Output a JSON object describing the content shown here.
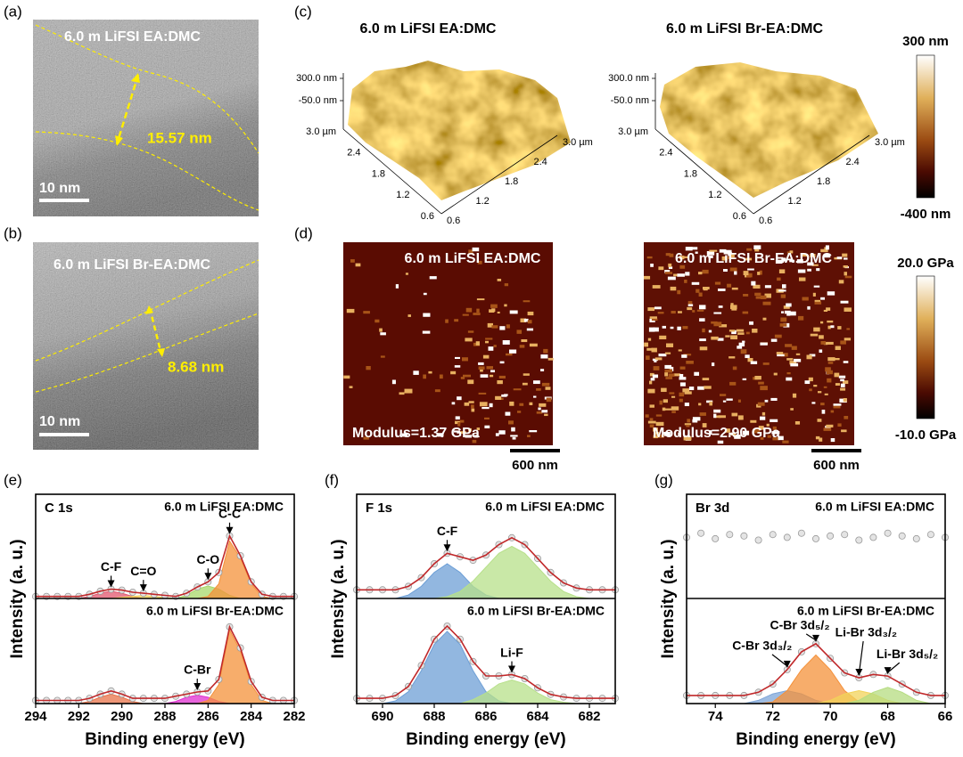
{
  "tem": [
    {
      "label": "(a)",
      "sample": "6.0 m LiFSI EA:DMC",
      "thickness": "15.57 nm",
      "scale_bar": "10 nm"
    },
    {
      "label": "(b)",
      "sample": "6.0 m LiFSI Br-EA:DMC",
      "thickness": "8.68 nm",
      "scale_bar": "10 nm"
    }
  ],
  "afm_height": {
    "label": "(c)",
    "samples": [
      "6.0 m LiFSI EA:DMC",
      "6.0 m LiFSI Br-EA:DMC"
    ],
    "z_ticks": [
      "300.0 nm",
      "-50.0 nm"
    ],
    "lateral_ticks": [
      "3.0 µm",
      "2.4",
      "1.8",
      "1.2",
      "0.6"
    ],
    "colorbar": [
      "300 nm",
      "-400 nm"
    ]
  },
  "afm_modulus": {
    "label": "(d)",
    "samples": [
      "6.0 m LiFSI EA:DMC",
      "6.0 m LiFSI Br-EA:DMC"
    ],
    "moduli": [
      "Modulus=1.37 GPa",
      "Modulus=2.90 GPa"
    ],
    "scale_bar": "600 nm",
    "colorbar": [
      "20.0 GPa",
      "-10.0 GPa"
    ]
  },
  "chart_data": [
    {
      "type": "line",
      "panel_label": "(e)",
      "core_level": "C 1s",
      "x_label": "Binding energy (eV)",
      "y_label": "Intensity (a. u.)",
      "xlim": [
        294,
        282
      ],
      "xticks": [
        294,
        292,
        290,
        288,
        286,
        284,
        282
      ],
      "x": [
        294,
        293.5,
        293,
        292.5,
        292,
        291.5,
        291,
        290.5,
        290,
        289.5,
        289,
        288.5,
        288,
        287.5,
        287,
        286.5,
        286,
        285.5,
        285,
        284.5,
        284,
        283.5,
        283,
        282.5,
        282
      ],
      "subplots": [
        {
          "sample": "6.0 m LiFSI EA:DMC",
          "ylim": [
            0,
            1
          ],
          "fit_line": true,
          "values": [
            0.02,
            0.02,
            0.02,
            0.02,
            0.02,
            0.04,
            0.07,
            0.09,
            0.08,
            0.06,
            0.05,
            0.04,
            0.03,
            0.02,
            0.05,
            0.11,
            0.16,
            0.25,
            0.6,
            0.41,
            0.16,
            0.04,
            0.02,
            0.02,
            0.02
          ],
          "series": [
            {
              "name": "C-F",
              "color": "#e2566e",
              "values": [
                0,
                0,
                0,
                0,
                0,
                0.02,
                0.05,
                0.07,
                0.05,
                0.02,
                0,
                0,
                0,
                0,
                0,
                0,
                0,
                0,
                0,
                0,
                0,
                0,
                0,
                0,
                0
              ]
            },
            {
              "name": "C=O",
              "color": "#f2d35a",
              "values": [
                0,
                0,
                0,
                0,
                0,
                0,
                0,
                0,
                0.01,
                0.02,
                0.03,
                0.02,
                0.01,
                0,
                0,
                0,
                0,
                0,
                0,
                0,
                0,
                0,
                0,
                0,
                0
              ]
            },
            {
              "name": "C-O",
              "color": "#a8d86a",
              "values": [
                0,
                0,
                0,
                0,
                0,
                0,
                0,
                0,
                0,
                0,
                0,
                0,
                0,
                0,
                0.03,
                0.09,
                0.12,
                0.09,
                0.03,
                0,
                0,
                0,
                0,
                0,
                0
              ]
            },
            {
              "name": "C-C",
              "color": "#f4913a",
              "values": [
                0,
                0,
                0,
                0,
                0,
                0,
                0,
                0,
                0,
                0,
                0,
                0,
                0,
                0,
                0,
                0,
                0.02,
                0.14,
                0.55,
                0.39,
                0.14,
                0.02,
                0,
                0,
                0
              ]
            }
          ]
        },
        {
          "sample": "6.0 m LiFSI Br-EA:DMC",
          "ylim": [
            0,
            1
          ],
          "fit_line": true,
          "values": [
            0.03,
            0.03,
            0.03,
            0.03,
            0.03,
            0.05,
            0.09,
            0.12,
            0.09,
            0.05,
            0.05,
            0.05,
            0.05,
            0.07,
            0.09,
            0.11,
            0.12,
            0.23,
            0.73,
            0.53,
            0.21,
            0.06,
            0.03,
            0.03,
            0.03
          ],
          "series": [
            {
              "color": "#e8734a",
              "values": [
                0,
                0,
                0,
                0,
                0,
                0.02,
                0.06,
                0.09,
                0.06,
                0.02,
                0,
                0,
                0,
                0,
                0,
                0,
                0,
                0,
                0,
                0,
                0,
                0,
                0,
                0,
                0
              ]
            },
            {
              "name": "C-Br",
              "color": "#e030d0",
              "values": [
                0,
                0,
                0,
                0,
                0,
                0,
                0,
                0,
                0,
                0,
                0,
                0,
                0,
                0.02,
                0.06,
                0.08,
                0.06,
                0.02,
                0,
                0,
                0,
                0,
                0,
                0,
                0
              ]
            },
            {
              "color": "#f4913a",
              "values": [
                0,
                0,
                0,
                0,
                0,
                0,
                0,
                0,
                0,
                0,
                0,
                0,
                0,
                0,
                0,
                0,
                0.03,
                0.18,
                0.7,
                0.5,
                0.18,
                0.03,
                0,
                0,
                0
              ]
            }
          ]
        }
      ]
    },
    {
      "type": "line",
      "panel_label": "(f)",
      "core_level": "F 1s",
      "x_label": "Binding energy (eV)",
      "y_label": "Intensity (a. u.)",
      "xlim": [
        691,
        681
      ],
      "xticks": [
        690,
        688,
        686,
        684,
        682
      ],
      "x": [
        691,
        690.5,
        690,
        689.5,
        689,
        688.5,
        688,
        687.5,
        687,
        686.5,
        686,
        685.5,
        685,
        684.5,
        684,
        683.5,
        683,
        682.5,
        682,
        681.5,
        681
      ],
      "subplots": [
        {
          "sample": "6.0 m LiFSI EA:DMC",
          "ylim": [
            0,
            0.6
          ],
          "fit_line": true,
          "values": [
            0.05,
            0.05,
            0.05,
            0.05,
            0.07,
            0.12,
            0.2,
            0.26,
            0.24,
            0.22,
            0.25,
            0.31,
            0.35,
            0.31,
            0.23,
            0.15,
            0.09,
            0.06,
            0.05,
            0.05,
            0.05
          ],
          "series": [
            {
              "name": "C-F",
              "color": "#6d9fd6",
              "values": [
                0,
                0,
                0,
                0,
                0.02,
                0.07,
                0.15,
                0.2,
                0.15,
                0.07,
                0.02,
                0,
                0,
                0,
                0,
                0,
                0,
                0,
                0,
                0,
                0
              ]
            },
            {
              "color": "#b7e08a",
              "values": [
                0,
                0,
                0,
                0,
                0,
                0,
                0,
                0.01,
                0.04,
                0.1,
                0.18,
                0.26,
                0.3,
                0.26,
                0.18,
                0.1,
                0.04,
                0.01,
                0,
                0,
                0
              ]
            }
          ]
        },
        {
          "sample": "6.0 m LiFSI Br-EA:DMC",
          "ylim": [
            0,
            0.8
          ],
          "fit_line": true,
          "values": [
            0.04,
            0.04,
            0.04,
            0.06,
            0.13,
            0.29,
            0.49,
            0.59,
            0.49,
            0.32,
            0.21,
            0.21,
            0.22,
            0.19,
            0.12,
            0.07,
            0.05,
            0.04,
            0.04,
            0.04,
            0.04
          ],
          "series": [
            {
              "color": "#6d9fd6",
              "values": [
                0,
                0,
                0,
                0.02,
                0.09,
                0.25,
                0.45,
                0.55,
                0.45,
                0.25,
                0.09,
                0.02,
                0,
                0,
                0,
                0,
                0,
                0,
                0,
                0,
                0
              ]
            },
            {
              "name": "Li-F",
              "color": "#b7e08a",
              "values": [
                0,
                0,
                0,
                0,
                0,
                0,
                0,
                0,
                0,
                0.03,
                0.08,
                0.15,
                0.18,
                0.15,
                0.08,
                0.03,
                0.01,
                0,
                0,
                0,
                0
              ]
            }
          ]
        }
      ]
    },
    {
      "type": "line",
      "panel_label": "(g)",
      "core_level": "Br 3d",
      "x_label": "Binding energy (eV)",
      "y_label": "Intensity (a. u.)",
      "xlim": [
        75,
        66
      ],
      "xticks": [
        74,
        72,
        70,
        68,
        66
      ],
      "x": [
        75,
        74.5,
        74,
        73.5,
        73,
        72.5,
        72,
        71.5,
        71,
        70.5,
        70,
        69.5,
        69,
        68.5,
        68,
        67.5,
        67,
        66.5,
        66
      ],
      "subplots": [
        {
          "sample": "6.0 m LiFSI EA:DMC",
          "ylim": [
            0,
            0.75
          ],
          "fit_line": false,
          "values": [
            0.44,
            0.47,
            0.43,
            0.46,
            0.45,
            0.42,
            0.46,
            0.44,
            0.47,
            0.43,
            0.45,
            0.46,
            0.42,
            0.44,
            0.47,
            0.45,
            0.43,
            0.46,
            0.44
          ],
          "series": []
        },
        {
          "sample": "6.0 m LiFSI Br-EA:DMC",
          "ylim": [
            0,
            0.65
          ],
          "fit_line": true,
          "values": [
            0.05,
            0.05,
            0.05,
            0.05,
            0.05,
            0.07,
            0.12,
            0.21,
            0.32,
            0.37,
            0.28,
            0.19,
            0.16,
            0.18,
            0.17,
            0.12,
            0.07,
            0.05,
            0.05
          ],
          "series": [
            {
              "name": "C-Br 3d₃/₂",
              "color": "#7ea6d8",
              "values": [
                0,
                0,
                0,
                0,
                0,
                0.02,
                0.06,
                0.08,
                0.06,
                0.02,
                0,
                0,
                0,
                0,
                0,
                0,
                0,
                0,
                0
              ]
            },
            {
              "name": "C-Br 3d₅/₂",
              "color": "#f4913a",
              "values": [
                0,
                0,
                0,
                0,
                0,
                0,
                0.01,
                0.08,
                0.21,
                0.3,
                0.21,
                0.08,
                0.01,
                0,
                0,
                0,
                0,
                0,
                0
              ]
            },
            {
              "name": "Li-Br 3d₃/₂",
              "color": "#f2d35a",
              "values": [
                0,
                0,
                0,
                0,
                0,
                0,
                0,
                0,
                0,
                0,
                0.02,
                0.06,
                0.08,
                0.06,
                0.02,
                0,
                0,
                0,
                0
              ]
            },
            {
              "name": "Li-Br 3d₅/₂",
              "color": "#b5dc80",
              "values": [
                0,
                0,
                0,
                0,
                0,
                0,
                0,
                0,
                0,
                0,
                0,
                0,
                0.02,
                0.07,
                0.1,
                0.07,
                0.02,
                0,
                0
              ]
            }
          ]
        }
      ]
    }
  ]
}
